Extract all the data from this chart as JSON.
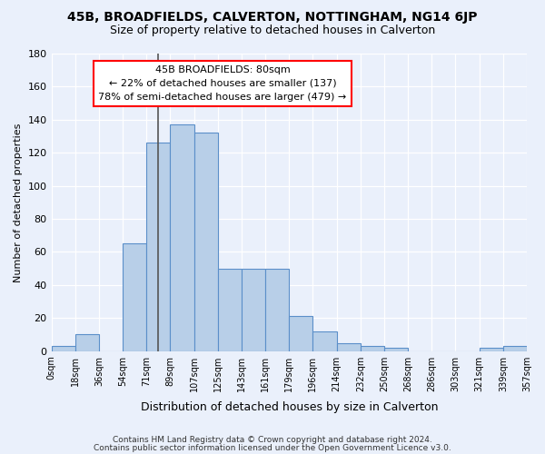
{
  "title": "45B, BROADFIELDS, CALVERTON, NOTTINGHAM, NG14 6JP",
  "subtitle": "Size of property relative to detached houses in Calverton",
  "xlabel": "Distribution of detached houses by size in Calverton",
  "ylabel": "Number of detached properties",
  "footer1": "Contains HM Land Registry data © Crown copyright and database right 2024.",
  "footer2": "Contains public sector information licensed under the Open Government Licence v3.0.",
  "bin_labels": [
    "0sqm",
    "18sqm",
    "36sqm",
    "54sqm",
    "71sqm",
    "89sqm",
    "107sqm",
    "125sqm",
    "143sqm",
    "161sqm",
    "179sqm",
    "196sqm",
    "214sqm",
    "232sqm",
    "250sqm",
    "268sqm",
    "286sqm",
    "303sqm",
    "321sqm",
    "339sqm",
    "357sqm"
  ],
  "bar_heights": [
    3,
    10,
    0,
    65,
    126,
    137,
    132,
    50,
    50,
    50,
    21,
    12,
    5,
    3,
    2,
    0,
    0,
    0,
    2,
    3
  ],
  "bar_color": "#b8cfe8",
  "bar_edge_color": "#5b8fc9",
  "annotation_text": "45B BROADFIELDS: 80sqm\n← 22% of detached houses are smaller (137)\n78% of semi-detached houses are larger (479) →",
  "annotation_box_color": "white",
  "annotation_box_edgecolor": "red",
  "property_size_sqm": 80,
  "bin_edges_sqm": [
    0,
    18,
    36,
    54,
    71,
    89,
    107,
    125,
    143,
    161,
    179,
    196,
    214,
    232,
    250,
    268,
    286,
    303,
    321,
    339,
    357
  ],
  "ylim": [
    0,
    180
  ],
  "yticks": [
    0,
    20,
    40,
    60,
    80,
    100,
    120,
    140,
    160,
    180
  ],
  "background_color": "#eaf0fb",
  "grid_color": "#ffffff",
  "vline_color": "#555555"
}
